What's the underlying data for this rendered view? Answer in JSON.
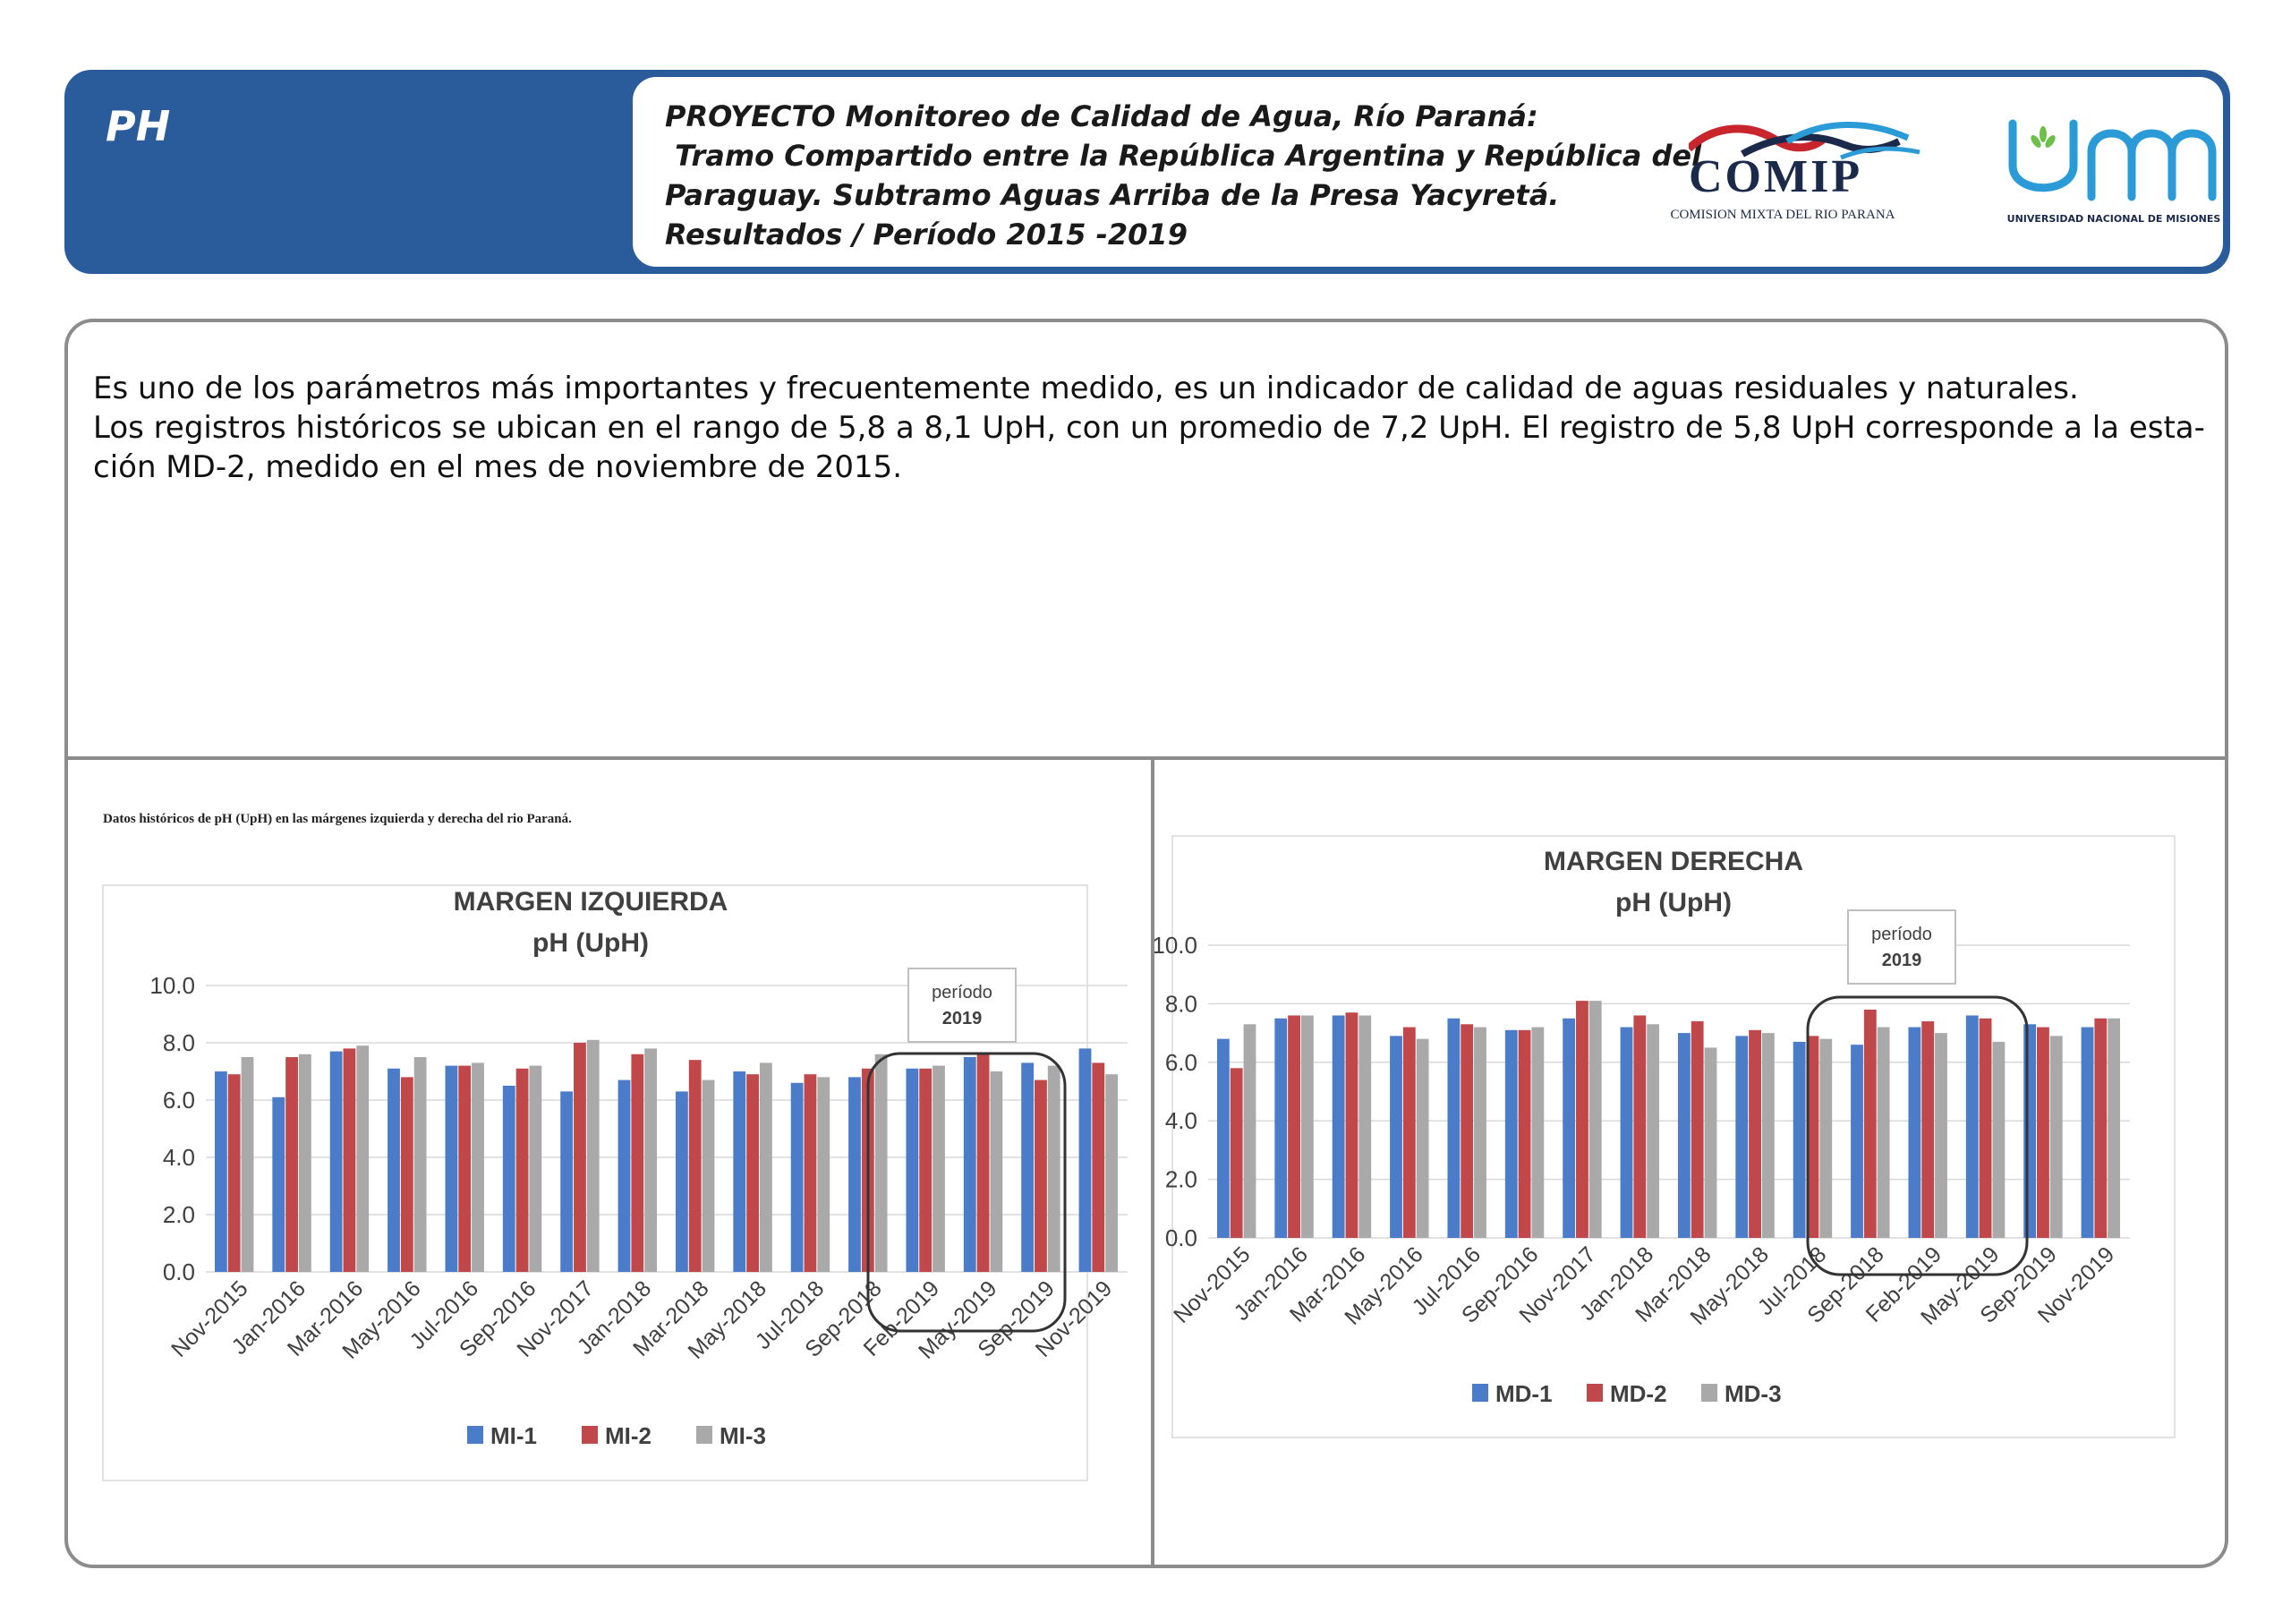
{
  "header": {
    "section_title": "PH",
    "project_lines": [
      "PROYECTO Monitoreo de Calidad de Agua, Río Paraná:",
      " Tramo Compartido entre la República Argentina y República del",
      "Paraguay. Subtramo Aguas Arriba de la Presa Yacyretá.",
      "Resultados / Período 2015 -2019"
    ],
    "logo_comip": {
      "name": "COMIP",
      "subtitle": "COMISION MIXTA DEL RIO PARANA"
    },
    "logo_unam": {
      "subtitle": "UNIVERSIDAD NACIONAL DE MISIONES"
    }
  },
  "intro": {
    "paragraph1": "Es uno de los parámetros más importantes y frecuentemente medido, es un indicador de calidad de aguas residuales y naturales.",
    "paragraph2_line1": "Los registros históricos se ubican en el rango de 5,8 a 8,1 UpH, con un promedio de 7,2 UpH. El registro de 5,8 UpH corresponde a la esta-",
    "paragraph2_line2": "ción MD-2, medido en el mes de noviembre de 2015."
  },
  "caption": "Datos históricos de pH (UpH) en las márgenes izquierda y derecha del rio Paraná.",
  "colors": {
    "series1": "#4a7cc9",
    "series2": "#c0474a",
    "series3": "#a9a9a9",
    "brand": "#2a5c9c"
  },
  "chart_data": [
    {
      "type": "bar",
      "title": "MARGEN IZQUIERDA",
      "subtitle": "pH (UpH)",
      "xlabel": "",
      "ylabel": "",
      "ylim": [
        0,
        10
      ],
      "yticks": [
        "0.0",
        "2.0",
        "4.0",
        "6.0",
        "8.0",
        "10.0"
      ],
      "categories": [
        "Nov-2015",
        "Jan-2016",
        "Mar-2016",
        "May-2016",
        "Jul-2016",
        "Sep-2016",
        "Nov-2017",
        "Jan-2018",
        "Mar-2018",
        "May-2018",
        "Jul-2018",
        "Sep-2018",
        "Feb-2019",
        "May-2019",
        "Sep-2019",
        "Nov-2019"
      ],
      "series": [
        {
          "name": "MI-1",
          "values": [
            7.0,
            6.1,
            7.7,
            7.1,
            7.2,
            6.5,
            6.3,
            6.7,
            6.3,
            7.0,
            6.6,
            6.8,
            7.1,
            7.5,
            7.3,
            7.8
          ]
        },
        {
          "name": "MI-2",
          "values": [
            6.9,
            7.5,
            7.8,
            6.8,
            7.2,
            7.1,
            8.0,
            7.6,
            7.4,
            6.9,
            6.9,
            7.1,
            7.1,
            7.6,
            6.7,
            7.3
          ]
        },
        {
          "name": "MI-3",
          "values": [
            7.5,
            7.6,
            7.9,
            7.5,
            7.3,
            7.2,
            8.1,
            7.8,
            6.7,
            7.3,
            6.8,
            7.6,
            7.2,
            7.0,
            7.2,
            6.9
          ]
        }
      ],
      "annotation": {
        "line1": "período",
        "line2": "2019"
      },
      "legend": "bottom"
    },
    {
      "type": "bar",
      "title": "MARGEN DERECHA",
      "subtitle": "pH (UpH)",
      "xlabel": "",
      "ylabel": "",
      "ylim": [
        0,
        10
      ],
      "yticks": [
        "0.0",
        "2.0",
        "4.0",
        "6.0",
        "8.0",
        "10.0"
      ],
      "categories": [
        "Nov-2015",
        "Jan-2016",
        "Mar-2016",
        "May-2016",
        "Jul-2016",
        "Sep-2016",
        "Nov-2017",
        "Jan-2018",
        "Mar-2018",
        "May-2018",
        "Jul-2018",
        "Sep-2018",
        "Feb-2019",
        "May-2019",
        "Sep-2019",
        "Nov-2019"
      ],
      "series": [
        {
          "name": "MD-1",
          "values": [
            6.8,
            7.5,
            7.6,
            6.9,
            7.5,
            7.1,
            7.5,
            7.2,
            7.0,
            6.9,
            6.7,
            6.6,
            7.2,
            7.6,
            7.3,
            7.2
          ]
        },
        {
          "name": "MD-2",
          "values": [
            5.8,
            7.6,
            7.7,
            7.2,
            7.3,
            7.1,
            8.1,
            7.6,
            7.4,
            7.1,
            6.9,
            7.8,
            7.4,
            7.5,
            7.2,
            7.5
          ]
        },
        {
          "name": "MD-3",
          "values": [
            7.3,
            7.6,
            7.6,
            6.8,
            7.2,
            7.2,
            8.1,
            7.3,
            6.5,
            7.0,
            6.8,
            7.2,
            7.0,
            6.7,
            6.9,
            7.5
          ]
        }
      ],
      "annotation": {
        "line1": "período",
        "line2": "2019"
      },
      "legend": "bottom"
    }
  ]
}
